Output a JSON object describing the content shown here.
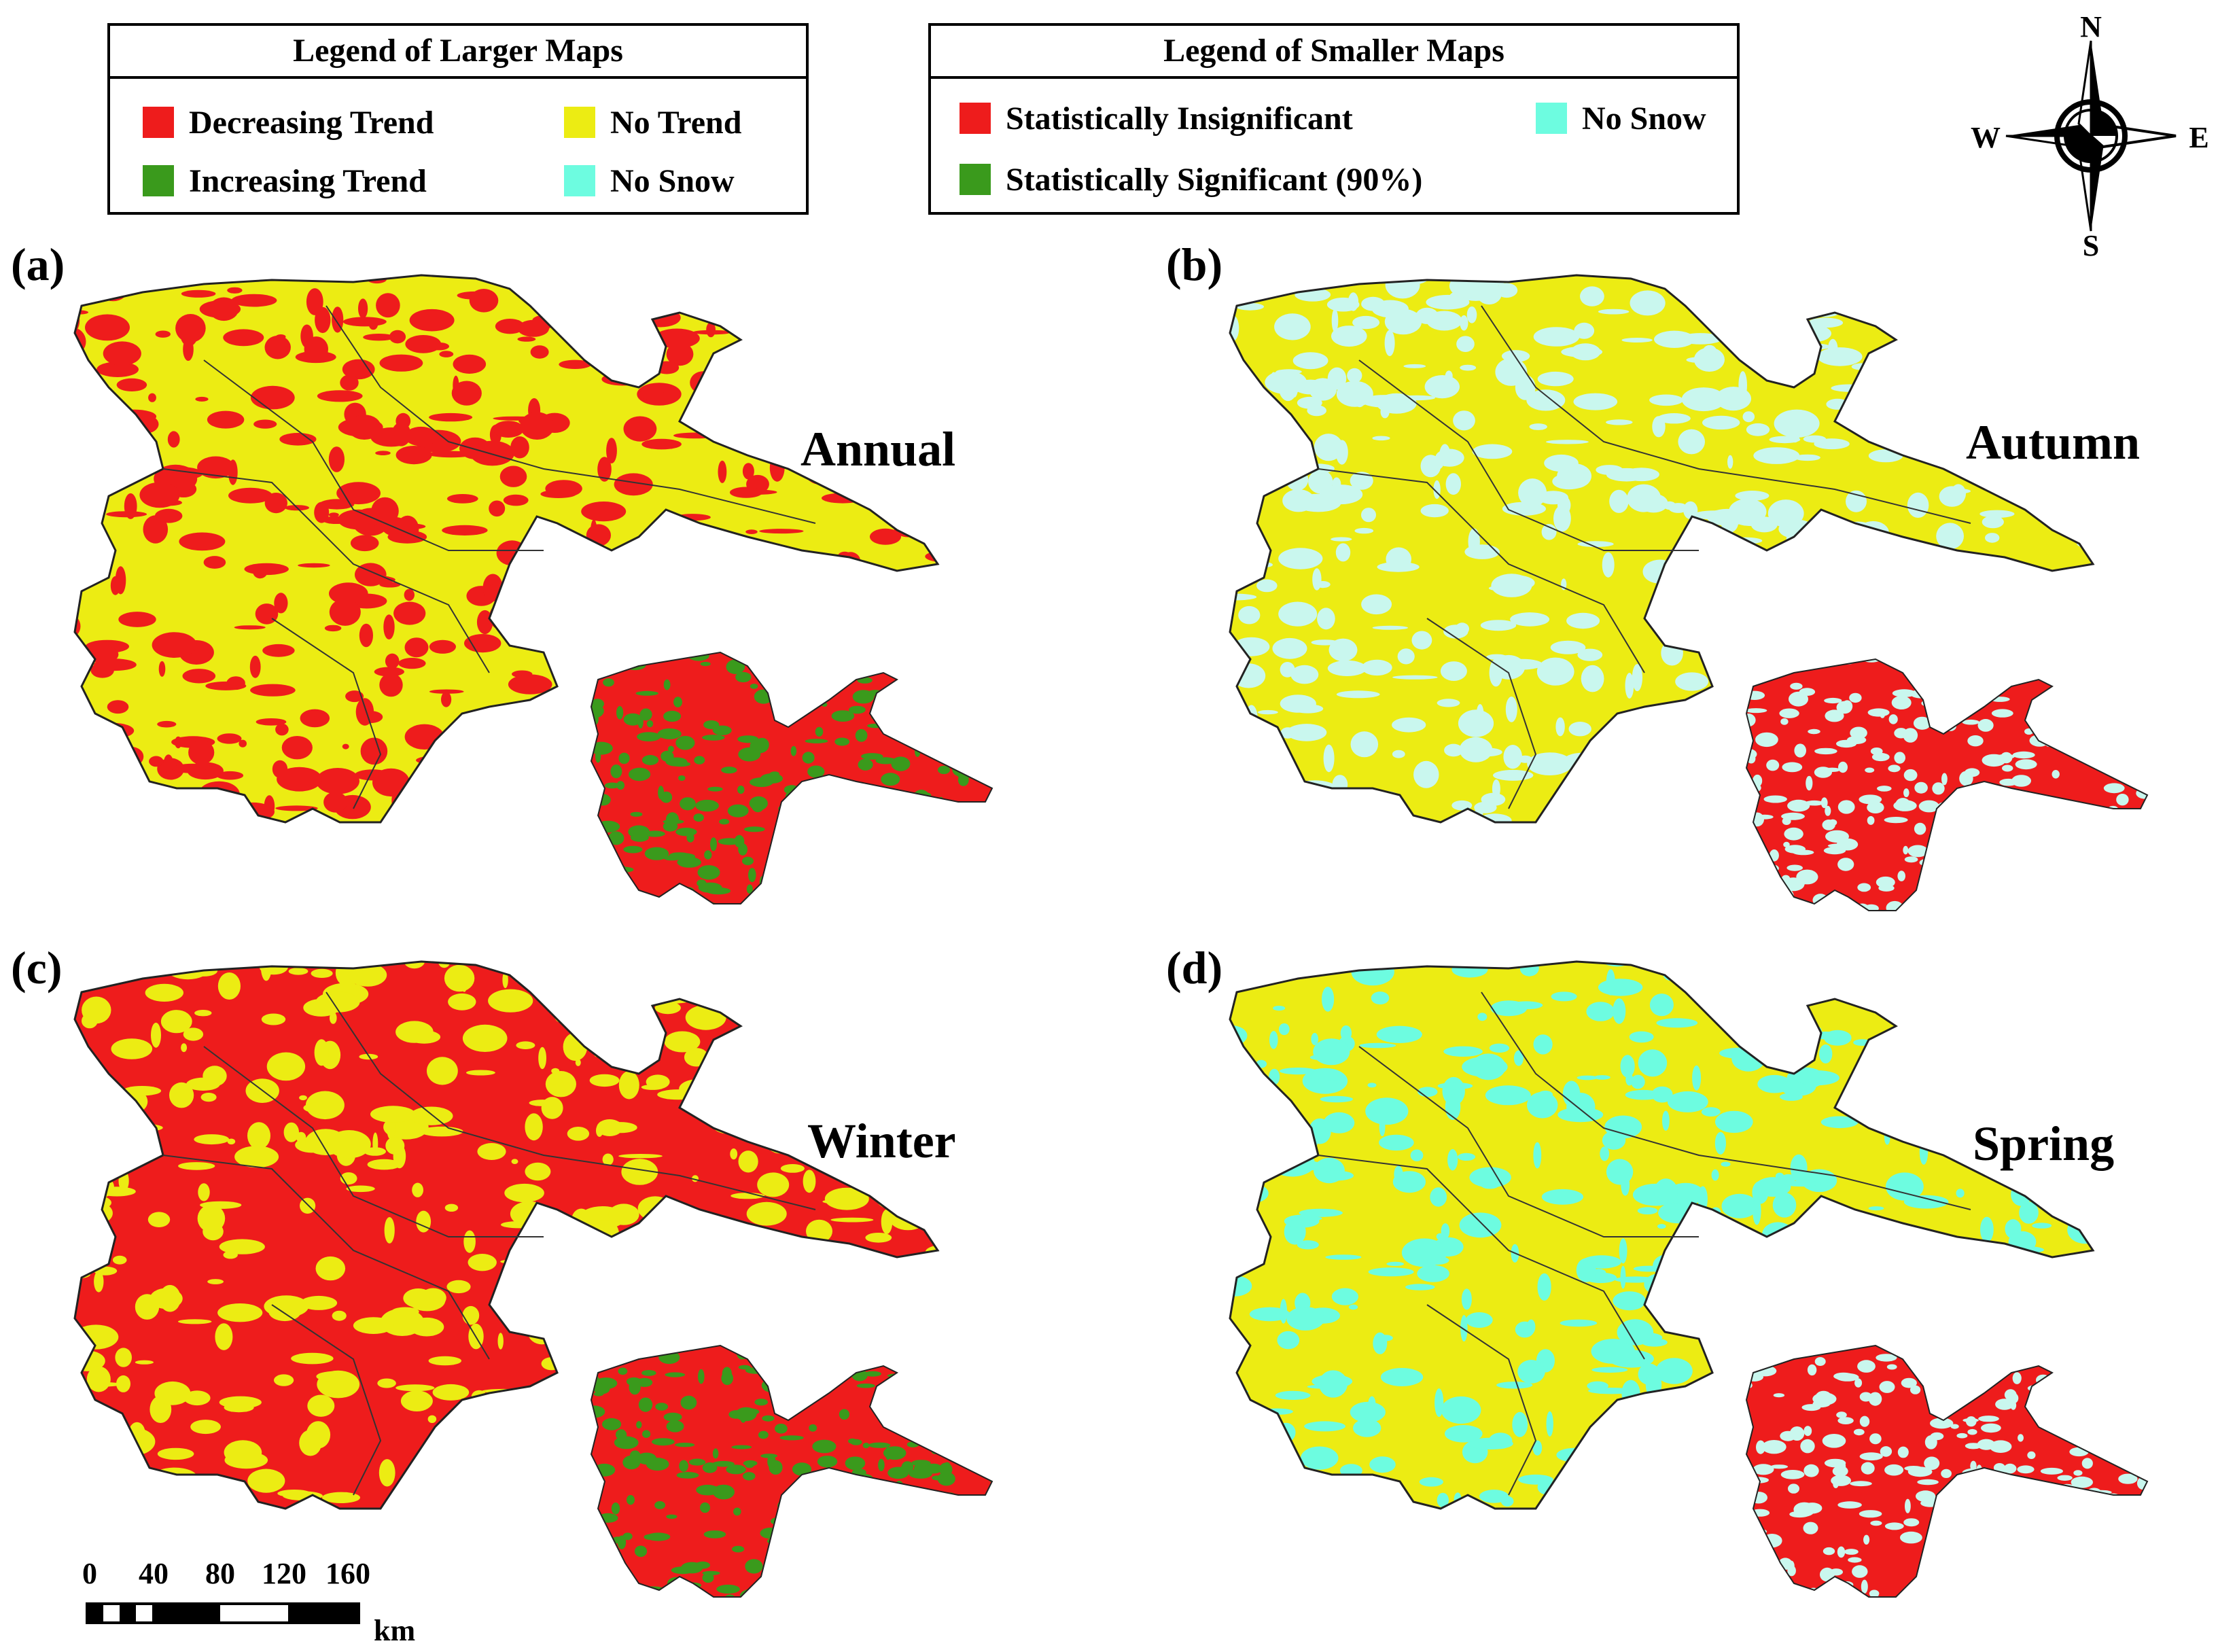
{
  "colors": {
    "red": "#ee1c1c",
    "yellow": "#ecec13",
    "green": "#3a9a1c",
    "cyan": "#6dfce0",
    "paleCyan": "#c9f7ee",
    "darkRed": "#cc1f1f"
  },
  "legend_large": {
    "title": "Legend of Larger Maps",
    "items": [
      {
        "label": "Decreasing Trend",
        "color": "#ee1c1c"
      },
      {
        "label": "No Trend",
        "color": "#ecec13"
      },
      {
        "label": "Increasing Trend",
        "color": "#3a9a1c"
      },
      {
        "label": "No Snow",
        "color": "#6dfce0"
      }
    ]
  },
  "legend_small": {
    "title": "Legend of Smaller Maps",
    "items": [
      {
        "label": "Statistically Insignificant",
        "color": "#ee1c1c"
      },
      {
        "label": "No Snow",
        "color": "#6dfce0"
      },
      {
        "label": "Statistically Significant (90%)",
        "color": "#3a9a1c"
      }
    ]
  },
  "compass": {
    "n": "N",
    "s": "S",
    "e": "E",
    "w": "W"
  },
  "panels": [
    {
      "id": "a",
      "label": "(a)",
      "season": "Annual",
      "large_fill": "#ecec13",
      "large_pattern": "#ee1c1c",
      "small_fill": "#ee1c1c",
      "small_pattern": "#3a9a1c"
    },
    {
      "id": "b",
      "label": "(b)",
      "season": "Autumn",
      "large_fill": "#ecec13",
      "large_pattern": "#c9f7ee",
      "small_fill": "#ee1c1c",
      "small_pattern": "#c9f7ee"
    },
    {
      "id": "c",
      "label": "(c)",
      "season": "Winter",
      "large_fill": "#ee1c1c",
      "large_pattern": "#ecec13",
      "small_fill": "#ee1c1c",
      "small_pattern": "#3a9a1c"
    },
    {
      "id": "d",
      "label": "(d)",
      "season": "Spring",
      "large_fill": "#ecec13",
      "large_pattern": "#6dfce0",
      "small_fill": "#ee1c1c",
      "small_pattern": "#c9f7ee"
    }
  ],
  "scale": {
    "ticks": [
      "0",
      "40",
      "80",
      "120",
      "160"
    ],
    "unit": "km"
  }
}
